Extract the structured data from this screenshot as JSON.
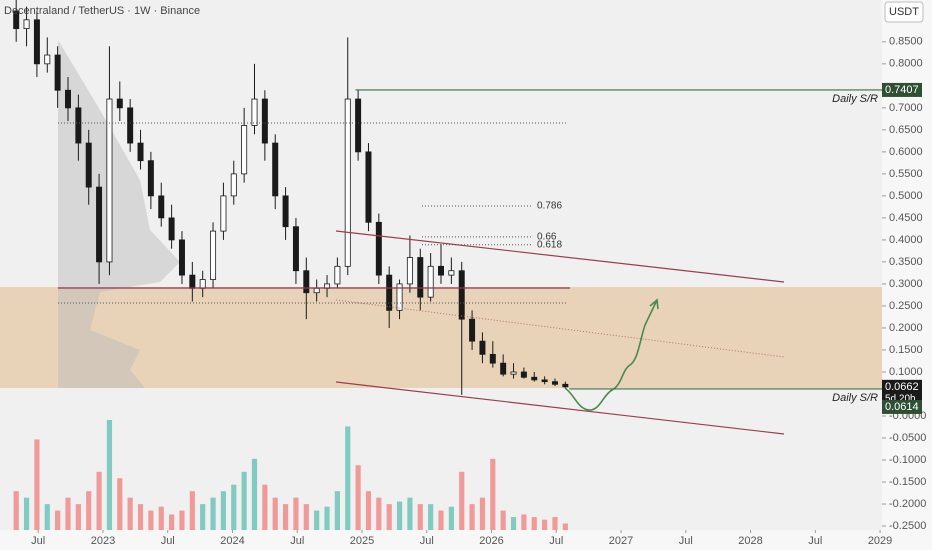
{
  "chart_data": {
    "type": "candlestick",
    "title": "Decentraland / TetherUS · 1W · Binance",
    "currency": "USDT",
    "x": [
      2022.33,
      2022.41,
      2022.49,
      2022.57,
      2022.65,
      2022.73,
      2022.81,
      2022.89,
      2022.97,
      2023.05,
      2023.13,
      2023.21,
      2023.29,
      2023.37,
      2023.45,
      2023.53,
      2023.61,
      2023.69,
      2023.77,
      2023.85,
      2023.93,
      2024.01,
      2024.09,
      2024.17,
      2024.25,
      2024.33,
      2024.41,
      2024.49,
      2024.57,
      2024.65,
      2024.73,
      2024.81,
      2024.89,
      2024.97,
      2025.05,
      2025.13,
      2025.21,
      2025.29,
      2025.37,
      2025.45,
      2025.53,
      2025.61,
      2025.69,
      2025.77,
      2025.85,
      2025.93,
      2026.01,
      2026.09,
      2026.17,
      2026.25,
      2026.33,
      2026.41,
      2026.49,
      2026.57
    ],
    "open": [
      0.92,
      0.88,
      0.9,
      0.8,
      0.82,
      0.74,
      0.7,
      0.62,
      0.52,
      0.35,
      0.72,
      0.7,
      0.62,
      0.58,
      0.5,
      0.45,
      0.4,
      0.32,
      0.29,
      0.31,
      0.42,
      0.5,
      0.55,
      0.66,
      0.72,
      0.62,
      0.5,
      0.43,
      0.33,
      0.28,
      0.29,
      0.3,
      0.34,
      0.72,
      0.6,
      0.44,
      0.32,
      0.24,
      0.3,
      0.36,
      0.27,
      0.34,
      0.32,
      0.33,
      0.22,
      0.17,
      0.14,
      0.12,
      0.095,
      0.1,
      0.088,
      0.082,
      0.078,
      0.072
    ],
    "high": [
      0.95,
      0.93,
      0.92,
      0.86,
      0.84,
      0.77,
      0.73,
      0.65,
      0.55,
      0.84,
      0.76,
      0.72,
      0.65,
      0.6,
      0.53,
      0.48,
      0.42,
      0.35,
      0.33,
      0.44,
      0.53,
      0.58,
      0.7,
      0.8,
      0.74,
      0.64,
      0.52,
      0.45,
      0.36,
      0.31,
      0.32,
      0.36,
      0.86,
      0.74,
      0.62,
      0.46,
      0.34,
      0.31,
      0.41,
      0.38,
      0.37,
      0.39,
      0.36,
      0.35,
      0.24,
      0.19,
      0.17,
      0.14,
      0.12,
      0.11,
      0.1,
      0.09,
      0.085,
      0.078
    ],
    "low": [
      0.85,
      0.84,
      0.77,
      0.78,
      0.7,
      0.67,
      0.58,
      0.48,
      0.3,
      0.32,
      0.67,
      0.6,
      0.56,
      0.47,
      0.43,
      0.38,
      0.3,
      0.26,
      0.27,
      0.29,
      0.4,
      0.48,
      0.53,
      0.64,
      0.58,
      0.47,
      0.4,
      0.3,
      0.22,
      0.26,
      0.27,
      0.29,
      0.32,
      0.58,
      0.42,
      0.3,
      0.2,
      0.22,
      0.28,
      0.24,
      0.26,
      0.3,
      0.3,
      0.048,
      0.15,
      0.12,
      0.11,
      0.09,
      0.085,
      0.085,
      0.078,
      0.072,
      0.068,
      0.062
    ],
    "close": [
      0.88,
      0.9,
      0.8,
      0.82,
      0.74,
      0.7,
      0.62,
      0.52,
      0.35,
      0.72,
      0.7,
      0.62,
      0.58,
      0.5,
      0.45,
      0.4,
      0.32,
      0.29,
      0.31,
      0.42,
      0.5,
      0.55,
      0.66,
      0.72,
      0.62,
      0.5,
      0.43,
      0.33,
      0.28,
      0.29,
      0.3,
      0.34,
      0.72,
      0.6,
      0.44,
      0.32,
      0.24,
      0.3,
      0.36,
      0.27,
      0.34,
      0.32,
      0.33,
      0.22,
      0.17,
      0.14,
      0.12,
      0.095,
      0.1,
      0.088,
      0.082,
      0.078,
      0.072,
      0.0662
    ],
    "volume": [
      30,
      25,
      70,
      20,
      15,
      25,
      20,
      30,
      45,
      85,
      40,
      25,
      20,
      15,
      18,
      12,
      15,
      30,
      20,
      25,
      30,
      35,
      45,
      55,
      35,
      25,
      20,
      25,
      20,
      15,
      18,
      30,
      80,
      50,
      30,
      25,
      20,
      22,
      25,
      20,
      20,
      15,
      18,
      45,
      20,
      25,
      55,
      15,
      10,
      12,
      10,
      8,
      10,
      5
    ],
    "up_color": "#ffffff",
    "down_color": "#1a1a1a",
    "volume_up_color": "#6cc3b8",
    "volume_down_color": "#f08a8a",
    "xlim": [
      2022.205,
      2029.015
    ],
    "xticks": [
      {
        "value": 2022.5,
        "label": "Jul"
      },
      {
        "value": 2023,
        "label": "2023"
      },
      {
        "value": 2023.5,
        "label": "Jul"
      },
      {
        "value": 2024,
        "label": "2024"
      },
      {
        "value": 2024.5,
        "label": "Jul"
      },
      {
        "value": 2025,
        "label": "2025"
      },
      {
        "value": 2025.5,
        "label": "Jul"
      },
      {
        "value": 2026,
        "label": "2026"
      },
      {
        "value": 2026.5,
        "label": "Jul"
      },
      {
        "value": 2027,
        "label": "2027"
      },
      {
        "value": 2027.5,
        "label": "Jul"
      },
      {
        "value": 2028,
        "label": "2028"
      },
      {
        "value": 2028.5,
        "label": "Jul"
      },
      {
        "value": 2029,
        "label": "2029"
      }
    ],
    "ylim": [
      -0.259,
      0.945
    ],
    "yticks": [
      {
        "value": 0.85,
        "label": "0.8500"
      },
      {
        "value": 0.8,
        "label": "0.8000"
      },
      {
        "value": 0.7,
        "label": "0.7000"
      },
      {
        "value": 0.65,
        "label": "0.6500"
      },
      {
        "value": 0.6,
        "label": "0.6000"
      },
      {
        "value": 0.55,
        "label": "0.5500"
      },
      {
        "value": 0.5,
        "label": "0.5000"
      },
      {
        "value": 0.45,
        "label": "0.4500"
      },
      {
        "value": 0.4,
        "label": "0.4000"
      },
      {
        "value": 0.35,
        "label": "0.3500"
      },
      {
        "value": 0.3,
        "label": "0.3000"
      },
      {
        "value": 0.25,
        "label": "0.2500"
      },
      {
        "value": 0.2,
        "label": "0.2000"
      },
      {
        "value": 0.15,
        "label": "0.1500"
      },
      {
        "value": 0.1,
        "label": "0.1000"
      },
      {
        "value": 0,
        "label": "-0.0000"
      },
      {
        "value": -0.05,
        "label": "-0.0500"
      },
      {
        "value": -0.1,
        "label": "-0.1000"
      },
      {
        "value": -0.15,
        "label": "-0.1500"
      },
      {
        "value": -0.2,
        "label": "-0.2000"
      },
      {
        "value": -0.25,
        "label": "-0.2500"
      }
    ],
    "grid": false,
    "levels": [
      {
        "price": 0.7407,
        "from": 2024.95,
        "label": "Daily S/R",
        "color": "#3d6b45"
      },
      {
        "price": 0.0614,
        "from": 2026.6,
        "label": "Daily S/R",
        "color": "#3d6b45"
      }
    ],
    "fib_levels": [
      {
        "label": "0.786",
        "price": 0.477
      },
      {
        "label": "0.66",
        "price": 0.407
      },
      {
        "label": "0.618",
        "price": 0.389
      }
    ],
    "countdown": "5d 20h"
  }
}
